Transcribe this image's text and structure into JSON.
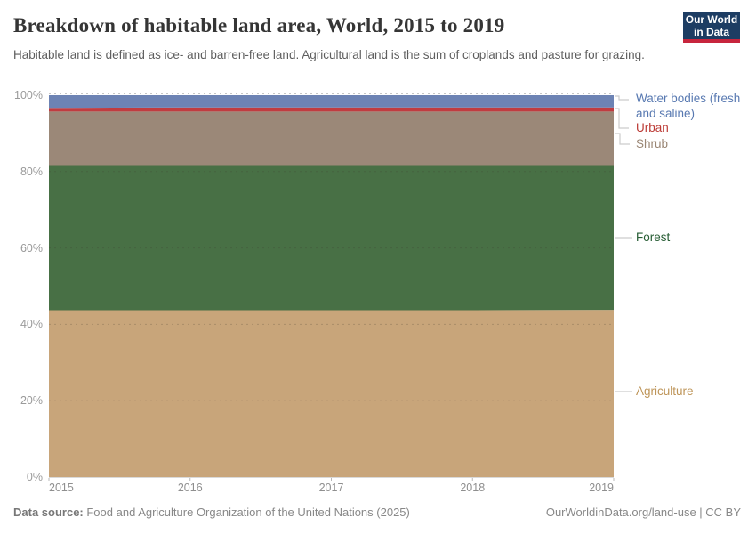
{
  "header": {
    "title": "Breakdown of habitable land area, World, 2015 to 2019",
    "subtitle": "Habitable land is defined as ice- and barren-free land. Agricultural land is the sum of croplands and pasture for grazing.",
    "logo": {
      "line1": "Our World",
      "line2": "in Data"
    }
  },
  "chart_data": {
    "type": "area",
    "stacked": true,
    "unit": "%",
    "title": "Breakdown of habitable land area, World, 2015 to 2019",
    "x": [
      2015,
      2016,
      2017,
      2018,
      2019
    ],
    "x_tick_labels": [
      "2015",
      "2016",
      "2017",
      "2018",
      "2019"
    ],
    "y_tick_labels": [
      "0%",
      "20%",
      "40%",
      "60%",
      "80%",
      "100%"
    ],
    "ylim": [
      0,
      100
    ],
    "grid": "horizontal-dashed",
    "legend_position": "right",
    "series": [
      {
        "name": "Agriculture",
        "color": "#c8a57a",
        "label_color": "#be9559",
        "values": [
          43.7,
          43.7,
          43.7,
          43.7,
          43.8
        ]
      },
      {
        "name": "Forest",
        "color": "#487045",
        "label_color": "#265c33",
        "values": [
          38.0,
          38.0,
          38.0,
          38.0,
          37.9
        ]
      },
      {
        "name": "Shrub",
        "color": "#9b8878",
        "label_color": "#9a8674",
        "values": [
          14.0,
          14.0,
          14.0,
          14.0,
          14.0
        ]
      },
      {
        "name": "Urban",
        "color": "#c03c40",
        "label_color": "#bc3b36",
        "values": [
          1.0,
          1.1,
          1.1,
          1.1,
          1.1
        ]
      },
      {
        "name": "Water bodies (fresh and saline)",
        "color": "#6d83b4",
        "label_color": "#5879b1",
        "values": [
          3.3,
          3.2,
          3.2,
          3.2,
          3.2
        ]
      }
    ]
  },
  "footer": {
    "datasource_label": "Data source:",
    "datasource": " Food and Agriculture Organization of the United Nations (2025)",
    "attribution": "OurWorldinData.org/land-use | CC BY"
  }
}
